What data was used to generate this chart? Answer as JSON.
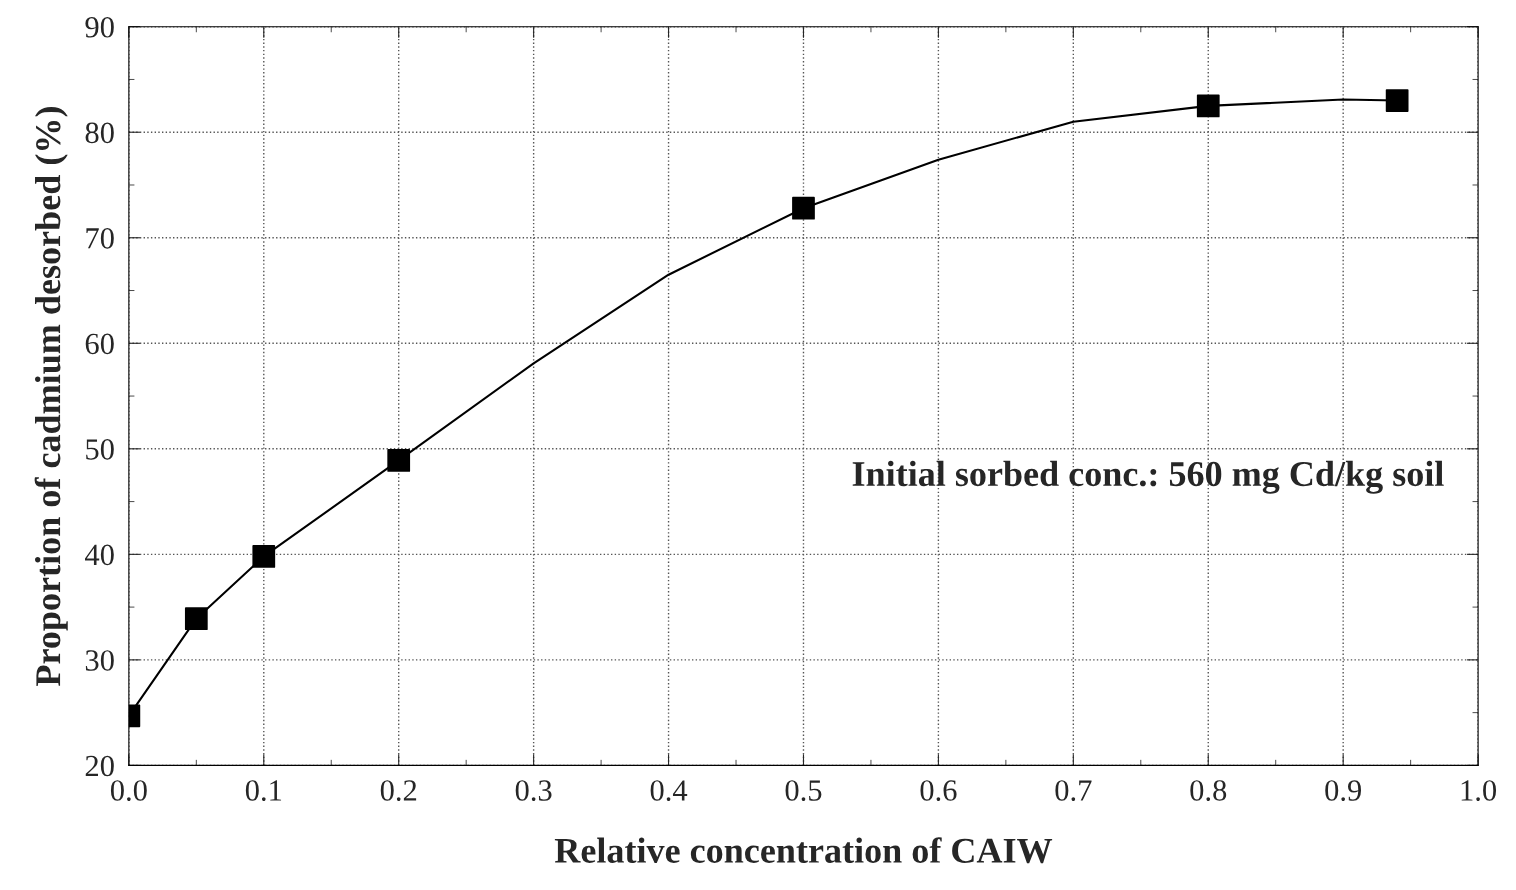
{
  "chart_data": {
    "type": "scatter",
    "xlabel": "Relative concentration of CAIW",
    "ylabel": "Proportion of cadmium desorbed (%)",
    "series": [
      {
        "color": "#000000",
        "marker": "square",
        "x": [
          0.0,
          0.05,
          0.1,
          0.2,
          0.5,
          0.8,
          0.94
        ],
        "values": [
          24.7,
          33.9,
          39.8,
          48.9,
          72.8,
          82.5,
          83.0
        ]
      },
      {
        "type": "line",
        "color": "#000000",
        "marker": "none",
        "line_style": "solid",
        "x": [
          0.0,
          0.05,
          0.1,
          0.2,
          0.3,
          0.4,
          0.5,
          0.6,
          0.7,
          0.8,
          0.9,
          0.94
        ],
        "values": [
          24.7,
          33.9,
          39.8,
          48.9,
          58.1,
          66.5,
          72.8,
          77.4,
          81.0,
          82.5,
          83.1,
          83.0
        ]
      }
    ],
    "xlim": [
      0.0,
      1.0
    ],
    "xticks": [
      {
        "value": 0.0,
        "label": "0.0"
      },
      0.1,
      0.2,
      0.3,
      0.4,
      0.5,
      0.6,
      0.7,
      0.8,
      0.9,
      {
        "value": 1.0,
        "label": "1.0"
      }
    ],
    "ylim": [
      20,
      90
    ],
    "yticks": [
      20,
      30,
      40,
      50,
      60,
      70,
      80,
      90
    ],
    "grid": true,
    "annotations": [
      "Initial sorbed conc.: 560 mg Cd/kg soil"
    ]
  }
}
